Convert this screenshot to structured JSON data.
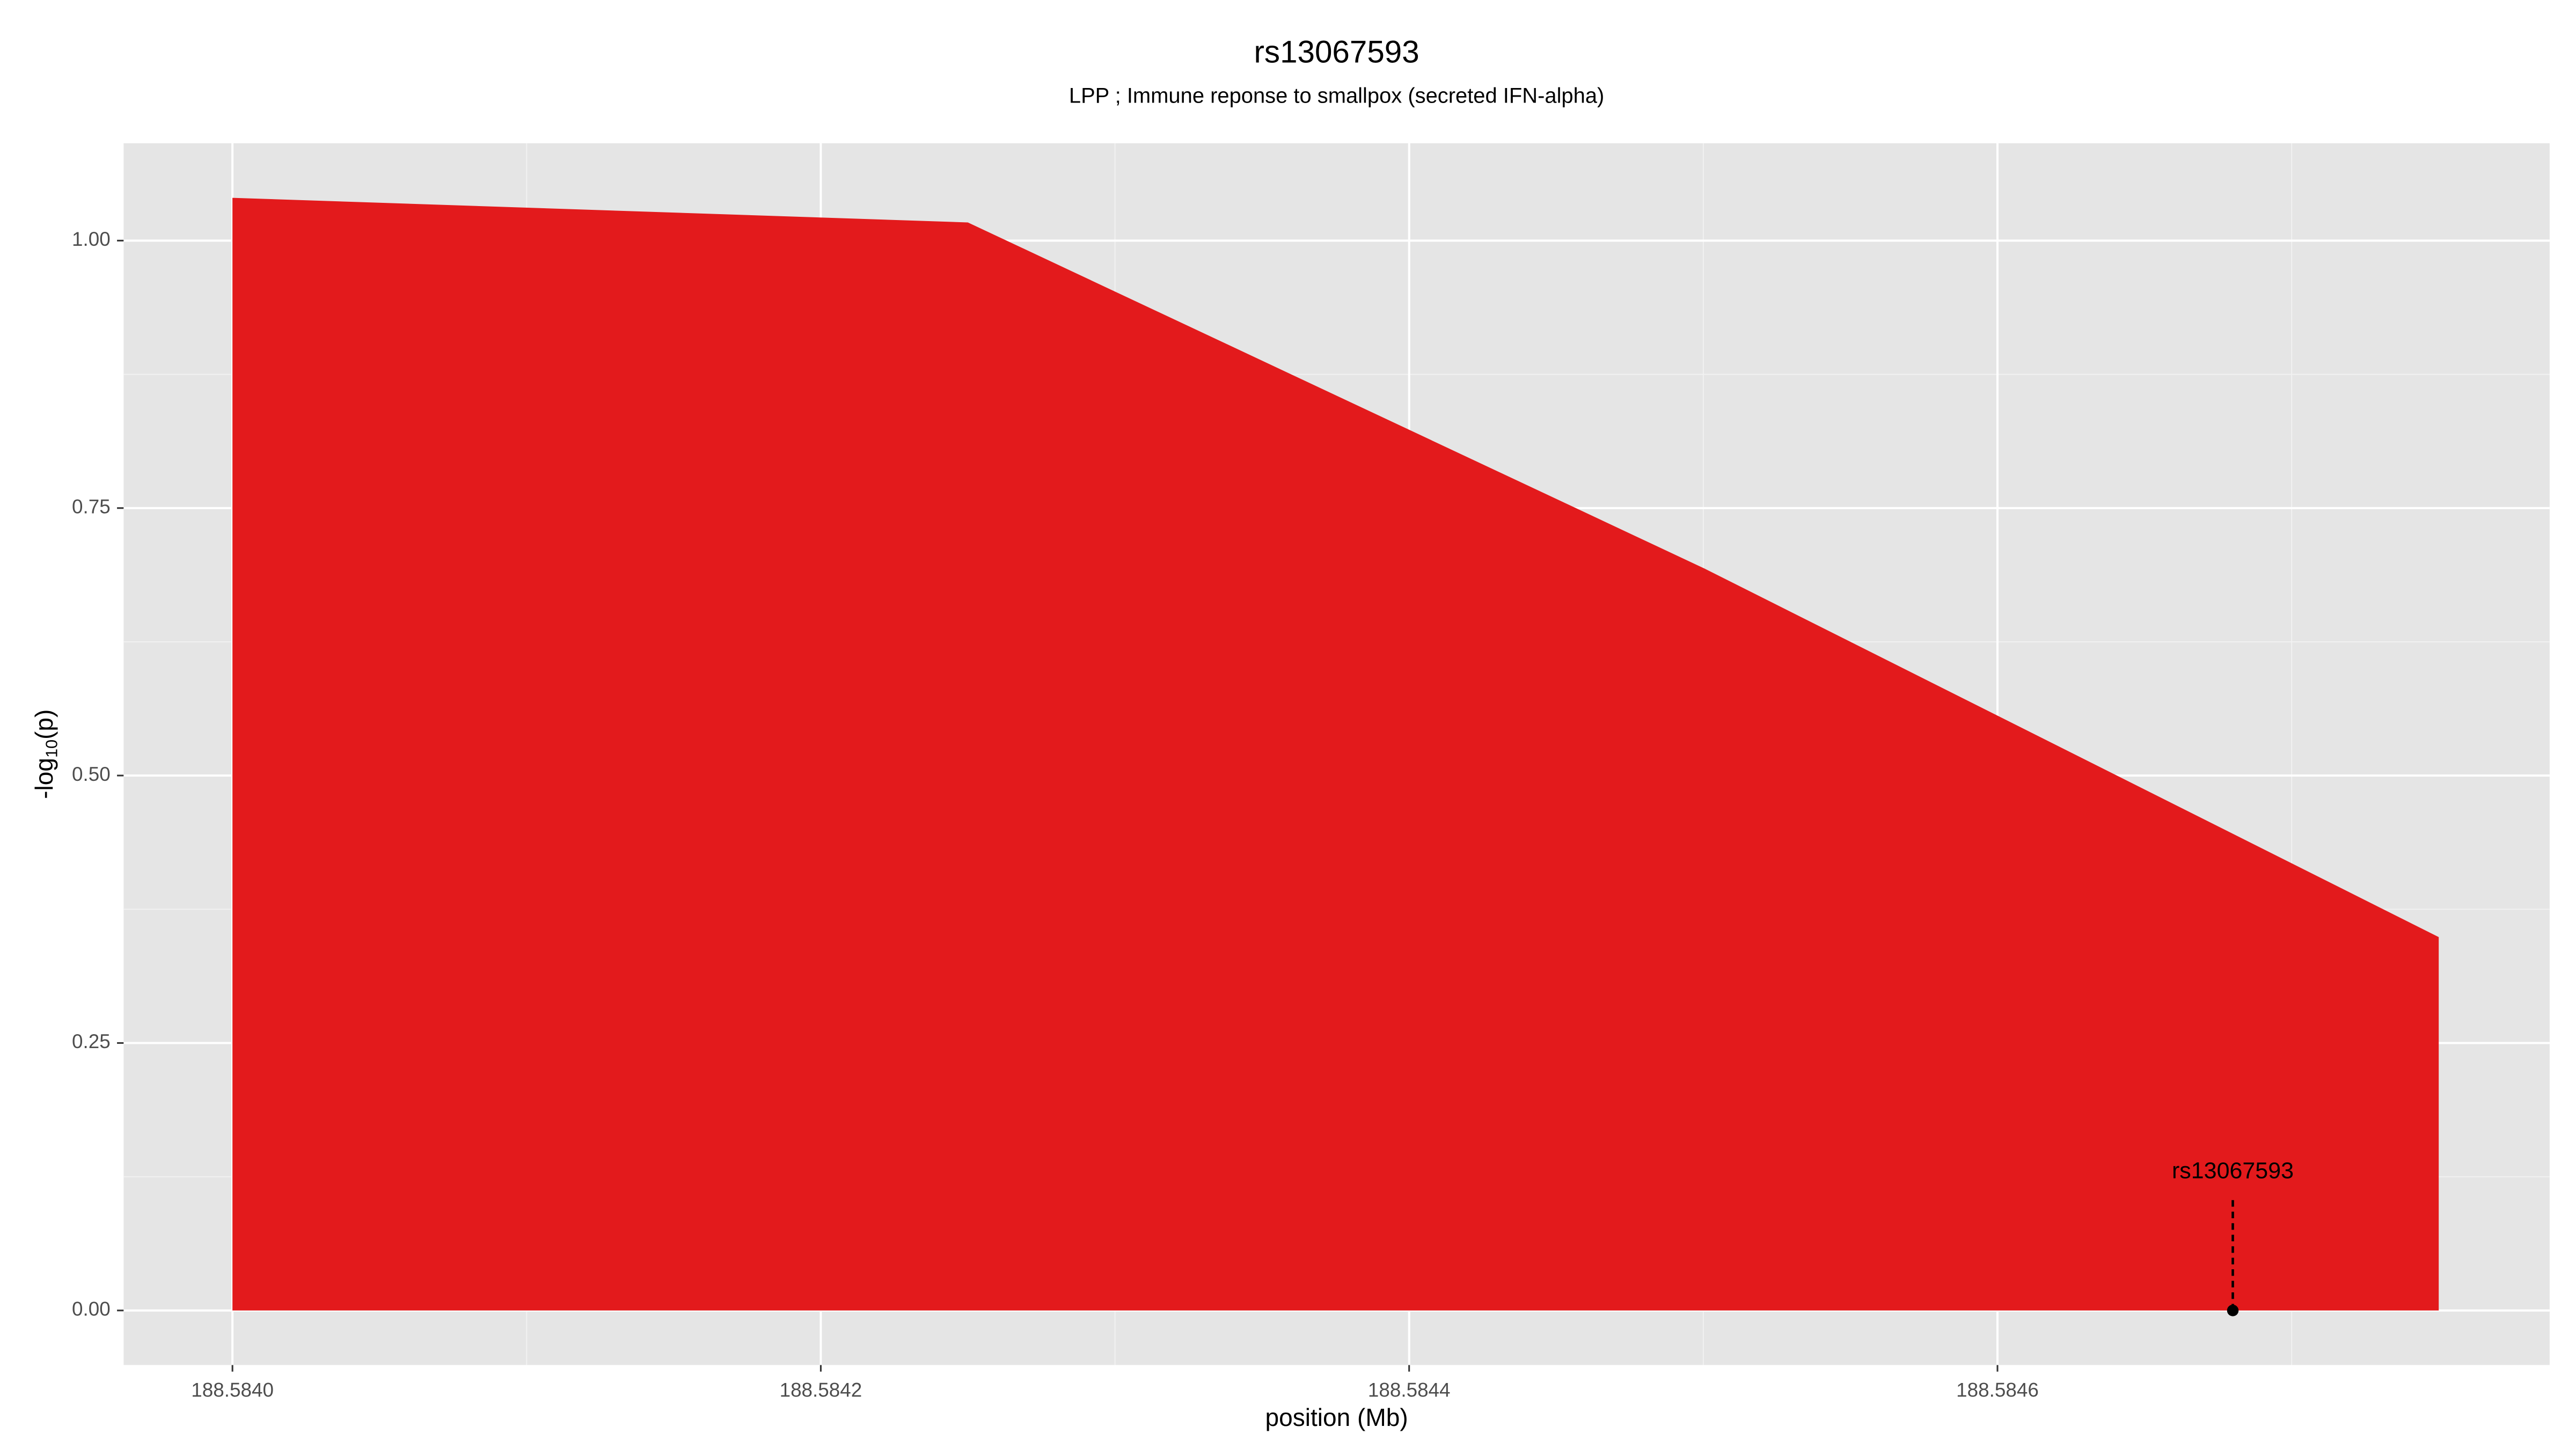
{
  "chart_data": {
    "type": "area",
    "title": "rs13067593",
    "subtitle": "LPP ; Immune reponse to smallpox (secreted IFN-alpha)",
    "x_label": "position (Mb)",
    "y_label": [
      "-log",
      "10",
      "(p)"
    ],
    "x": [
      188.584,
      188.58425,
      188.5845,
      188.58475
    ],
    "values": [
      1.04,
      1.017,
      0.694,
      0.349
    ],
    "color": "#e31a1c",
    "xlim": [
      188.583963,
      188.5847877
    ],
    "ylim": [
      -0.051,
      1.091
    ],
    "xticks": [
      {
        "value": 188.584,
        "label": "188.5840"
      },
      {
        "value": 188.5842,
        "label": "188.5842"
      },
      {
        "value": 188.5844,
        "label": "188.5844"
      },
      {
        "value": 188.5846,
        "label": "188.5846"
      }
    ],
    "yticks": [
      {
        "value": 0,
        "label": "0.00"
      },
      {
        "value": 0.25,
        "label": "0.25"
      },
      {
        "value": 0.5,
        "label": "0.50"
      },
      {
        "value": 0.75,
        "label": "0.75"
      },
      {
        "value": 1,
        "label": "1.00"
      }
    ],
    "grid": true,
    "annotation": {
      "label": "rs13067593",
      "x": 188.58468,
      "y": 0
    }
  }
}
